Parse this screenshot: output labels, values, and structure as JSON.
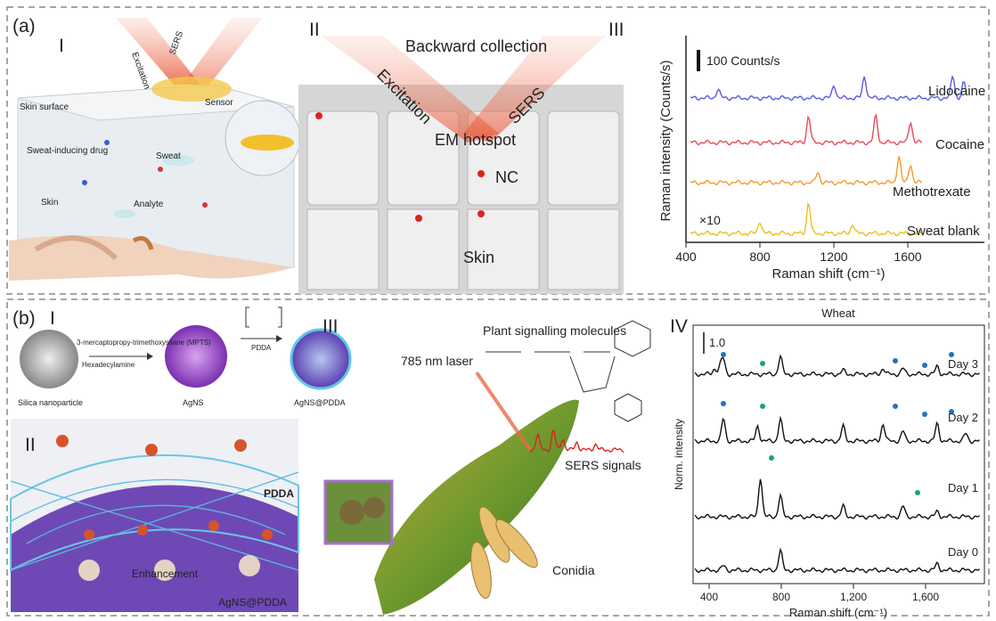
{
  "panel_a": {
    "label": "(a)",
    "part_i": {
      "label": "I",
      "excitation": "Excitation",
      "sers": "SERS",
      "sensor": "Sensor",
      "skin_surface": "Skin surface",
      "drug": "Sweat-inducing drug",
      "sweat": "Sweat",
      "skin": "Skin",
      "analyte": "Analyte"
    },
    "part_ii": {
      "label": "II",
      "collection": "Backward collection",
      "excitation": "Excitation",
      "sers": "SERS",
      "hotspot": "EM hotspot",
      "nc": "NC",
      "skin": "Skin"
    },
    "part_iii": {
      "label": "III",
      "scale": "100 Counts/s",
      "y_label": "Raman intensity (Counts/s)",
      "x_label": "Raman shift (cm⁻¹)",
      "xticks": [
        "400",
        "800",
        "1200",
        "1600"
      ],
      "spectra": [
        "Lidocaine",
        "Cocaine",
        "Methotrexate",
        "Sweat blank"
      ],
      "factor": "×10"
    }
  },
  "panel_b": {
    "label": "(b)",
    "part_i": {
      "label": "I",
      "reagent": "3-mercaptopropy-trimethoxysilane (MPTS)",
      "amine": "Hexadecylamine",
      "silica": "Silica nanoparticle",
      "agns": "AgNS",
      "pdda": "PDDA",
      "product": "AgNS@PDDA"
    },
    "part_ii": {
      "label": "II",
      "pdda": "PDDA",
      "enhancement": "Enhancement",
      "product": "AgNS@PDDA"
    },
    "part_iii": {
      "label": "III",
      "molecules": "Plant signalling molecules",
      "laser": "785 nm laser",
      "signals": "SERS signals",
      "conidia": "Conidia"
    },
    "part_iv": {
      "label": "IV",
      "title": "Wheat",
      "scale": "1.0",
      "days": [
        "Day 3",
        "Day 2",
        "Day 1",
        "Day 0"
      ],
      "y_label": "Norm. intensity",
      "x_label": "Raman shift (cm⁻¹)",
      "xticks": [
        "400",
        "800",
        "1,200",
        "1,600"
      ]
    }
  }
}
